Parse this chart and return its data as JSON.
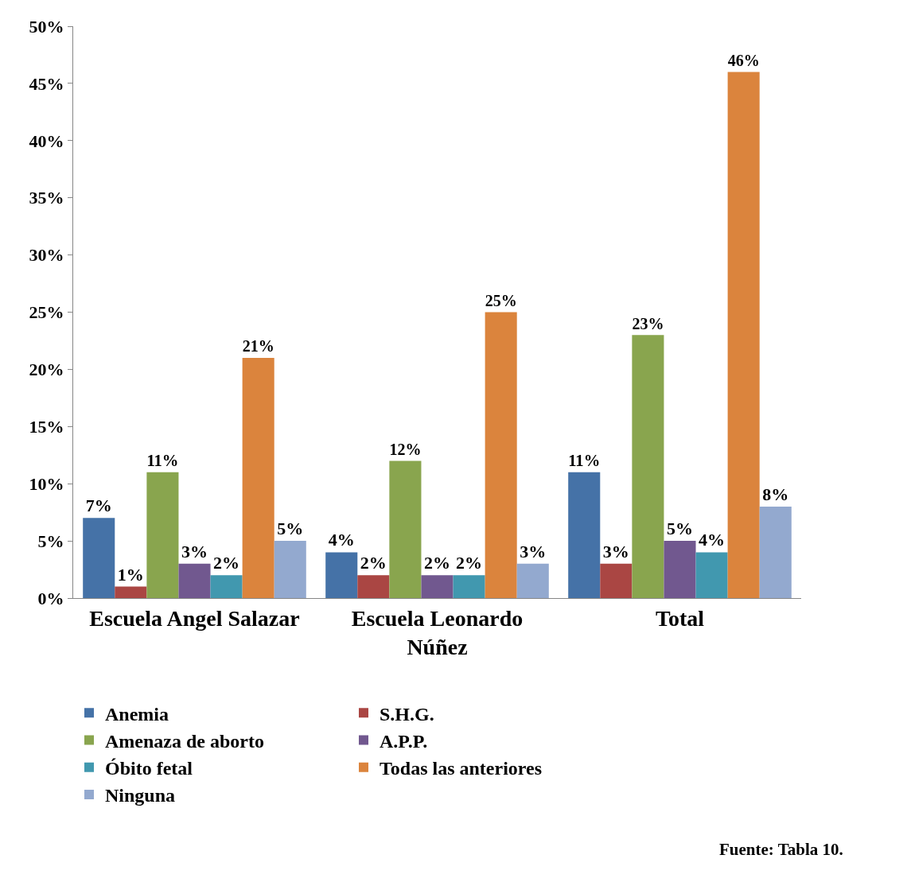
{
  "chart_data": {
    "type": "bar",
    "categories": [
      "Escuela Angel Salazar",
      "Escuela Leonardo Núñez",
      "Total"
    ],
    "series": [
      {
        "name": "Anemia",
        "color": "#4572a7",
        "values": [
          7,
          4,
          11
        ],
        "value_labels": [
          "7%",
          "4%",
          "11%"
        ]
      },
      {
        "name": "S.H.G.",
        "color": "#aa4643",
        "values": [
          1,
          2,
          3
        ],
        "value_labels": [
          "1%",
          "2%",
          "3%"
        ]
      },
      {
        "name": "Amenaza de aborto",
        "color": "#89a54e",
        "values": [
          11,
          12,
          23
        ],
        "value_labels": [
          "11%",
          "12%",
          "23%"
        ]
      },
      {
        "name": "A.P.P.",
        "color": "#71588f",
        "values": [
          3,
          2,
          5
        ],
        "value_labels": [
          "3%",
          "2%",
          "5%"
        ]
      },
      {
        "name": "Óbito fetal",
        "color": "#4198af",
        "values": [
          2,
          2,
          4
        ],
        "value_labels": [
          "2%",
          "2%",
          "4%"
        ]
      },
      {
        "name": "Todas las anteriores",
        "color": "#db843d",
        "values": [
          21,
          25,
          46
        ],
        "value_labels": [
          "21%",
          "25%",
          "46%"
        ]
      },
      {
        "name": "Ninguna",
        "color": "#93a9cf",
        "values": [
          5,
          3,
          8
        ],
        "value_labels": [
          "5%",
          "3%",
          "8%"
        ]
      }
    ],
    "ylim": [
      0,
      50
    ],
    "yticks": [
      {
        "value": 0,
        "label": "0%"
      },
      {
        "value": 5,
        "label": "5%"
      },
      {
        "value": 10,
        "label": "10%"
      },
      {
        "value": 15,
        "label": "15%"
      },
      {
        "value": 20,
        "label": "20%"
      },
      {
        "value": 25,
        "label": "25%"
      },
      {
        "value": 30,
        "label": "30%"
      },
      {
        "value": 35,
        "label": "35%"
      },
      {
        "value": 40,
        "label": "40%"
      },
      {
        "value": 45,
        "label": "45%"
      },
      {
        "value": 50,
        "label": "50%"
      }
    ],
    "legend": "bottom",
    "annotations": [
      "Fuente: Tabla 10."
    ]
  }
}
